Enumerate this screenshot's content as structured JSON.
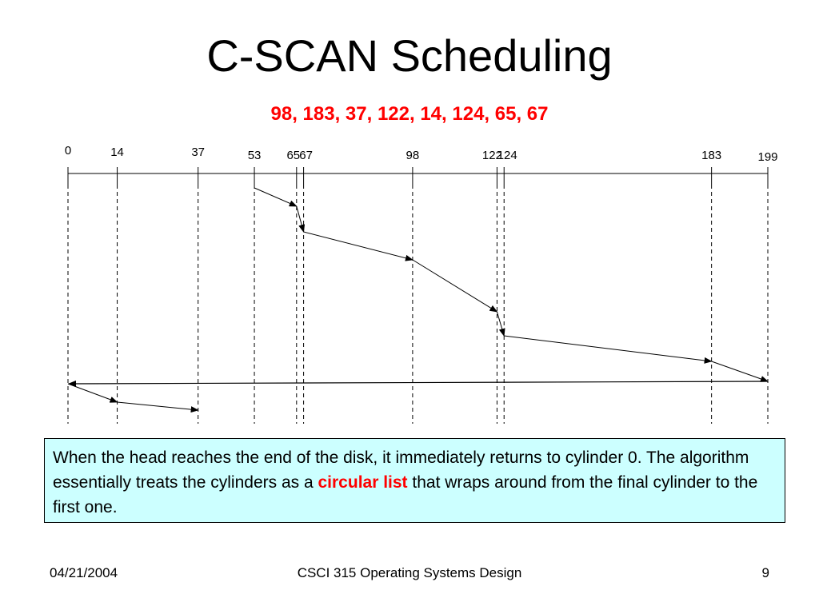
{
  "slide": {
    "title": "C-SCAN Scheduling",
    "request_queue": "98, 183, 37, 122, 14, 124, 65, 67"
  },
  "diagram": {
    "cylinder_labels": [
      "0",
      "14",
      "37",
      "53",
      "65",
      "67",
      "98",
      "122",
      "124",
      "183",
      "199"
    ],
    "head_start": 53,
    "service_path": [
      53,
      65,
      67,
      98,
      122,
      124,
      183,
      199,
      0,
      14,
      37
    ],
    "return_sweep": {
      "from": 199,
      "to": 0
    },
    "colors": {
      "line": "#000000"
    }
  },
  "callout": {
    "text_before": "When the head reaches the end of the disk, it immediately returns to cylinder 0. The algorithm essentially treats the cylinders as a ",
    "highlight": "circular list",
    "text_after": " that wraps around from the final cylinder to the first one.",
    "background": "#ccffff",
    "highlight_color": "#ff0000"
  },
  "footer": {
    "date": "04/21/2004",
    "course": "CSCI 315 Operating Systems Design",
    "page": "9"
  }
}
